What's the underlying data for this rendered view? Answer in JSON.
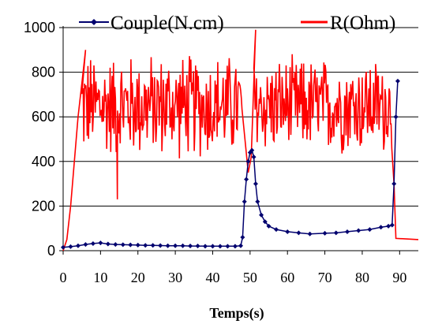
{
  "chart_data": {
    "type": "line",
    "title": "",
    "xlabel": "Temps(s)",
    "ylabel": "",
    "xlim": [
      0,
      95
    ],
    "ylim": [
      0,
      1000
    ],
    "x_ticks": [
      0,
      10,
      20,
      30,
      40,
      50,
      60,
      70,
      80,
      90
    ],
    "y_ticks": [
      0,
      200,
      400,
      600,
      800,
      1000
    ],
    "grid": "horizontal",
    "legend_position": "top",
    "series": [
      {
        "name": "Couple(N.cm)",
        "color": "#00006e",
        "marker": "diamond",
        "x": [
          0,
          2,
          4,
          6,
          8,
          10,
          12,
          14,
          16,
          18,
          20,
          22,
          24,
          26,
          28,
          30,
          32,
          34,
          36,
          38,
          40,
          42,
          44,
          46,
          47.5,
          48,
          48.5,
          49,
          49.5,
          50,
          50.5,
          51,
          51.5,
          52,
          53,
          54,
          55,
          57,
          60,
          63,
          66,
          70,
          73,
          76,
          79,
          82,
          85,
          87,
          88,
          88.5,
          89,
          89.5
        ],
        "y": [
          15,
          18,
          22,
          28,
          32,
          35,
          30,
          28,
          27,
          26,
          25,
          24,
          24,
          23,
          22,
          22,
          22,
          21,
          21,
          20,
          20,
          20,
          20,
          20,
          22,
          60,
          220,
          320,
          400,
          440,
          450,
          420,
          300,
          220,
          160,
          130,
          110,
          95,
          85,
          80,
          75,
          78,
          80,
          85,
          90,
          95,
          105,
          110,
          115,
          300,
          600,
          760
        ]
      },
      {
        "name": "R(Ohm)",
        "color": "#ff0000",
        "x": [
          0,
          1,
          2,
          3,
          4,
          5,
          6
        ],
        "y": [
          0,
          50,
          200,
          400,
          600,
          750,
          900
        ],
        "noisy_segments": [
          {
            "x": [
              5,
              48
            ],
            "center": 650,
            "amplitude": 260
          },
          {
            "x": [
              51,
              88
            ],
            "center": 650,
            "amplitude": 240
          }
        ],
        "dips": [
          {
            "x": 14.5,
            "y": 230
          },
          {
            "x": 49.5,
            "y": 350
          },
          {
            "x": 51.5,
            "y": 990
          }
        ],
        "tail": {
          "x": [
            89,
            95
          ],
          "y": [
            55,
            50
          ]
        }
      }
    ]
  }
}
